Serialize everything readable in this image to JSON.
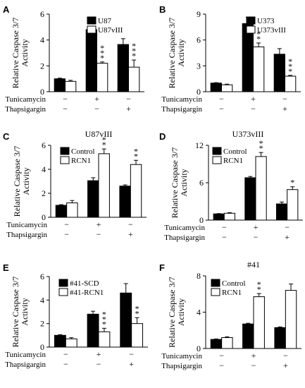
{
  "chart_data": [
    {
      "panel": "A",
      "type": "bar",
      "title": "",
      "ylabel": "Relative Caspase 3/7 Activity",
      "ylim": [
        0,
        6
      ],
      "yticks": [
        0,
        2,
        4,
        6
      ],
      "categories": [
        "control",
        "tunicamycin",
        "thapsigargin"
      ],
      "series": [
        {
          "name": "U87",
          "values": [
            1.0,
            4.8,
            3.65
          ],
          "errors": [
            0.05,
            0.25,
            0.45
          ]
        },
        {
          "name": "U87vIII",
          "values": [
            0.8,
            2.2,
            1.9
          ],
          "errors": [
            0.08,
            0.1,
            0.55
          ]
        }
      ],
      "treatments": [
        {
          "label": "Tunicamycin",
          "signs": [
            "−",
            "+",
            "−"
          ]
        },
        {
          "label": "Thapsigargin",
          "signs": [
            "−",
            "−",
            "+"
          ]
        }
      ],
      "significance": [
        null,
        "***",
        "***"
      ],
      "legend_position": "top-right"
    },
    {
      "panel": "B",
      "type": "bar",
      "title": "",
      "ylabel": "Relative Caspase 3/7 Activity",
      "ylim": [
        0,
        9
      ],
      "yticks": [
        0,
        3,
        6,
        9
      ],
      "categories": [
        "control",
        "tunicamycin",
        "thapsigargin"
      ],
      "series": [
        {
          "name": "U373",
          "values": [
            1.0,
            7.9,
            4.35
          ],
          "errors": [
            0.05,
            0.75,
            0.65
          ]
        },
        {
          "name": "U373vIII",
          "values": [
            0.8,
            5.2,
            1.8
          ],
          "errors": [
            0.08,
            0.45,
            0.1
          ]
        }
      ],
      "treatments": [
        {
          "label": "Tunicamycin",
          "signs": [
            "−",
            "+",
            "−"
          ]
        },
        {
          "label": "Thapsigargin",
          "signs": [
            "−",
            "−",
            "+"
          ]
        }
      ],
      "significance": [
        null,
        "**",
        "***"
      ],
      "legend_position": "top-right"
    },
    {
      "panel": "C",
      "type": "bar",
      "title": "U87vIII",
      "ylabel": "Relative Caspase 3/7 Activity",
      "ylim": [
        0,
        6
      ],
      "yticks": [
        0,
        2,
        4,
        6
      ],
      "categories": [
        "control",
        "tunicamycin",
        "thapsigargin"
      ],
      "series": [
        {
          "name": "Control",
          "values": [
            1.0,
            3.05,
            2.6
          ],
          "errors": [
            0.05,
            0.25,
            0.1
          ]
        },
        {
          "name": "RCN1",
          "values": [
            1.2,
            5.3,
            4.4
          ],
          "errors": [
            0.2,
            0.4,
            0.35
          ]
        }
      ],
      "treatments": [
        {
          "label": "Tunicamycin",
          "signs": [
            "−",
            "+",
            "−"
          ]
        },
        {
          "label": "Thapsigargin",
          "signs": [
            "−",
            "−",
            "+"
          ]
        }
      ],
      "significance": [
        null,
        "**",
        "**"
      ],
      "legend_position": "top-left"
    },
    {
      "panel": "D",
      "type": "bar",
      "title": "U373vIII",
      "ylabel": "Relative Caspase 3/7 Activity",
      "ylim": [
        0,
        12
      ],
      "yticks": [
        0,
        6,
        12
      ],
      "categories": [
        "control",
        "tunicamycin",
        "thapsigargin"
      ],
      "series": [
        {
          "name": "Control",
          "values": [
            1.0,
            6.8,
            2.6
          ],
          "errors": [
            0.05,
            0.2,
            0.3
          ]
        },
        {
          "name": "RCN1",
          "values": [
            1.1,
            10.2,
            4.9
          ],
          "errors": [
            0.1,
            0.65,
            0.45
          ]
        }
      ],
      "treatments": [
        {
          "label": "Tunicamycin",
          "signs": [
            "−",
            "+",
            "−"
          ]
        },
        {
          "label": "Thapsigargin",
          "signs": [
            "−",
            "−",
            "+"
          ]
        }
      ],
      "significance": [
        null,
        "**",
        "*"
      ],
      "legend_position": "top-left"
    },
    {
      "panel": "E",
      "type": "bar",
      "title": "",
      "ylabel": "Relative Caspase 3/7 Activity",
      "ylim": [
        0,
        6
      ],
      "yticks": [
        0,
        2,
        4,
        6
      ],
      "categories": [
        "control",
        "tunicamycin",
        "thapsigargin"
      ],
      "series": [
        {
          "name": "#41-SCD",
          "values": [
            1.0,
            2.8,
            4.6
          ],
          "errors": [
            0.05,
            0.25,
            0.8
          ]
        },
        {
          "name": "#41-RCN1",
          "values": [
            0.7,
            1.3,
            2.0
          ],
          "errors": [
            0.1,
            0.3,
            0.5
          ]
        }
      ],
      "treatments": [
        {
          "label": "Tunicamycin",
          "signs": [
            "−",
            "+",
            "−"
          ]
        },
        {
          "label": "Thapsigargin",
          "signs": [
            "−",
            "−",
            "+"
          ]
        }
      ],
      "significance": [
        null,
        "***",
        "**"
      ],
      "legend_position": "top-left"
    },
    {
      "panel": "F",
      "type": "bar",
      "title": "#41",
      "ylabel": "Relative Caspase 3/7 Activity",
      "ylim": [
        0,
        8
      ],
      "yticks": [
        0,
        4,
        8
      ],
      "categories": [
        "control",
        "tunicamycin",
        "thapsigargin"
      ],
      "series": [
        {
          "name": "Control",
          "values": [
            1.0,
            2.7,
            2.3
          ],
          "errors": [
            0.05,
            0.08,
            0.08
          ]
        },
        {
          "name": "RCN1",
          "values": [
            1.2,
            5.7,
            6.4
          ],
          "errors": [
            0.08,
            0.35,
            0.7
          ]
        }
      ],
      "treatments": [
        {
          "label": "Tunicamycin",
          "signs": [
            "−",
            "+",
            "−"
          ]
        },
        {
          "label": "Thapsigargin",
          "signs": [
            "−",
            "−",
            "+"
          ]
        }
      ],
      "significance": [
        null,
        "**",
        null
      ],
      "legend_position": "top-left"
    }
  ]
}
